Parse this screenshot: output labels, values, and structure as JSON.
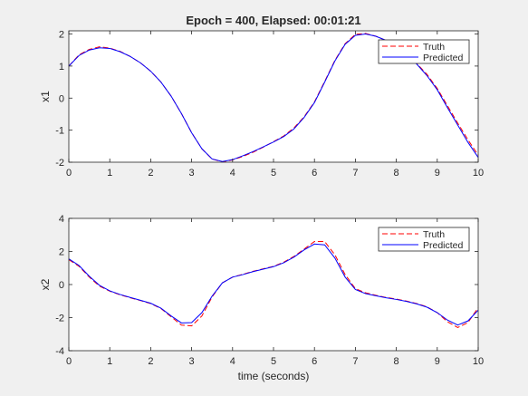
{
  "figure": {
    "title": "Epoch = 400, Elapsed: 00:01:21",
    "background": "#f0f0f0"
  },
  "legend": {
    "truth": "Truth",
    "predicted": "Predicted"
  },
  "colors": {
    "truth": "#ff0000",
    "predicted": "#0000ff",
    "axes_bg": "#ffffff",
    "axis": "#262626"
  },
  "chart_data": [
    {
      "type": "line",
      "title": "Epoch = 400, Elapsed: 00:01:21",
      "xlabel": "",
      "ylabel": "x1",
      "xlim": [
        0,
        10
      ],
      "ylim": [
        -2,
        2.1
      ],
      "xticks": [
        0,
        1,
        2,
        3,
        4,
        5,
        6,
        7,
        8,
        9,
        10
      ],
      "yticks": [
        -2,
        -1,
        0,
        1,
        2
      ],
      "grid": false,
      "legend_position": "top-right",
      "series": [
        {
          "name": "Truth",
          "style": "dashed",
          "color": "#ff0000",
          "x": [
            0,
            0.25,
            0.5,
            0.75,
            1,
            1.25,
            1.5,
            1.75,
            2,
            2.25,
            2.5,
            2.75,
            3,
            3.25,
            3.5,
            3.75,
            4,
            4.25,
            4.5,
            4.75,
            5,
            5.25,
            5.5,
            5.75,
            6,
            6.25,
            6.5,
            6.75,
            7,
            7.25,
            7.5,
            7.75,
            8,
            8.25,
            8.5,
            8.75,
            9,
            9.25,
            9.5,
            9.75,
            10
          ],
          "y": [
            1.0,
            1.35,
            1.52,
            1.6,
            1.56,
            1.46,
            1.3,
            1.1,
            0.84,
            0.5,
            0.06,
            -0.48,
            -1.08,
            -1.58,
            -1.9,
            -1.99,
            -1.93,
            -1.82,
            -1.69,
            -1.53,
            -1.36,
            -1.18,
            -0.93,
            -0.58,
            -0.12,
            0.52,
            1.18,
            1.7,
            1.99,
            2.02,
            1.93,
            1.8,
            1.62,
            1.38,
            1.08,
            0.74,
            0.3,
            -0.24,
            -0.78,
            -1.3,
            -1.78
          ]
        },
        {
          "name": "Predicted",
          "style": "solid",
          "color": "#0000ff",
          "x": [
            0,
            0.25,
            0.5,
            0.75,
            1,
            1.25,
            1.5,
            1.75,
            2,
            2.25,
            2.5,
            2.75,
            3,
            3.25,
            3.5,
            3.75,
            4,
            4.25,
            4.5,
            4.75,
            5,
            5.25,
            5.5,
            5.75,
            6,
            6.25,
            6.5,
            6.75,
            7,
            7.25,
            7.5,
            7.75,
            8,
            8.25,
            8.5,
            8.75,
            9,
            9.25,
            9.5,
            9.75,
            10
          ],
          "y": [
            1.0,
            1.33,
            1.5,
            1.57,
            1.55,
            1.45,
            1.3,
            1.1,
            0.84,
            0.5,
            0.06,
            -0.48,
            -1.08,
            -1.58,
            -1.9,
            -1.98,
            -1.92,
            -1.8,
            -1.67,
            -1.52,
            -1.37,
            -1.2,
            -0.96,
            -0.6,
            -0.14,
            0.5,
            1.16,
            1.68,
            1.96,
            2.0,
            1.93,
            1.8,
            1.6,
            1.36,
            1.06,
            0.7,
            0.26,
            -0.3,
            -0.84,
            -1.38,
            -1.85
          ]
        }
      ]
    },
    {
      "type": "line",
      "title": "",
      "xlabel": "time (seconds)",
      "ylabel": "x2",
      "xlim": [
        0,
        10
      ],
      "ylim": [
        -4,
        4
      ],
      "xticks": [
        0,
        1,
        2,
        3,
        4,
        5,
        6,
        7,
        8,
        9,
        10
      ],
      "yticks": [
        -4,
        -2,
        0,
        2,
        4
      ],
      "grid": false,
      "legend_position": "top-right",
      "series": [
        {
          "name": "Truth",
          "style": "dashed",
          "color": "#ff0000",
          "x": [
            0,
            0.25,
            0.5,
            0.75,
            1,
            1.25,
            1.5,
            1.75,
            2,
            2.25,
            2.5,
            2.75,
            3,
            3.25,
            3.5,
            3.75,
            4,
            4.25,
            4.5,
            4.75,
            5,
            5.25,
            5.5,
            5.75,
            6,
            6.25,
            6.5,
            6.75,
            7,
            7.25,
            7.5,
            7.75,
            8,
            8.25,
            8.5,
            8.75,
            9,
            9.25,
            9.5,
            9.75,
            10
          ],
          "y": [
            1.5,
            1.1,
            0.45,
            -0.1,
            -0.4,
            -0.62,
            -0.8,
            -0.97,
            -1.15,
            -1.45,
            -1.95,
            -2.45,
            -2.5,
            -1.9,
            -0.75,
            0.1,
            0.45,
            0.62,
            0.8,
            0.95,
            1.1,
            1.35,
            1.7,
            2.15,
            2.6,
            2.6,
            1.8,
            0.6,
            -0.25,
            -0.5,
            -0.65,
            -0.78,
            -0.88,
            -1.0,
            -1.15,
            -1.35,
            -1.7,
            -2.25,
            -2.6,
            -2.3,
            -1.4
          ]
        },
        {
          "name": "Predicted",
          "style": "solid",
          "color": "#0000ff",
          "x": [
            0,
            0.25,
            0.5,
            0.75,
            1,
            1.25,
            1.5,
            1.75,
            2,
            2.25,
            2.5,
            2.75,
            3,
            3.25,
            3.5,
            3.75,
            4,
            4.25,
            4.5,
            4.75,
            5,
            5.25,
            5.5,
            5.75,
            6,
            6.25,
            6.5,
            6.75,
            7,
            7.25,
            7.5,
            7.75,
            8,
            8.25,
            8.5,
            8.75,
            9,
            9.25,
            9.5,
            9.75,
            10
          ],
          "y": [
            1.55,
            1.15,
            0.5,
            -0.05,
            -0.38,
            -0.6,
            -0.78,
            -0.95,
            -1.13,
            -1.43,
            -1.9,
            -2.32,
            -2.3,
            -1.7,
            -0.7,
            0.1,
            0.45,
            0.6,
            0.78,
            0.93,
            1.08,
            1.32,
            1.66,
            2.1,
            2.45,
            2.4,
            1.6,
            0.45,
            -0.3,
            -0.55,
            -0.68,
            -0.8,
            -0.9,
            -1.02,
            -1.17,
            -1.37,
            -1.7,
            -2.15,
            -2.45,
            -2.2,
            -1.55
          ]
        }
      ]
    }
  ]
}
